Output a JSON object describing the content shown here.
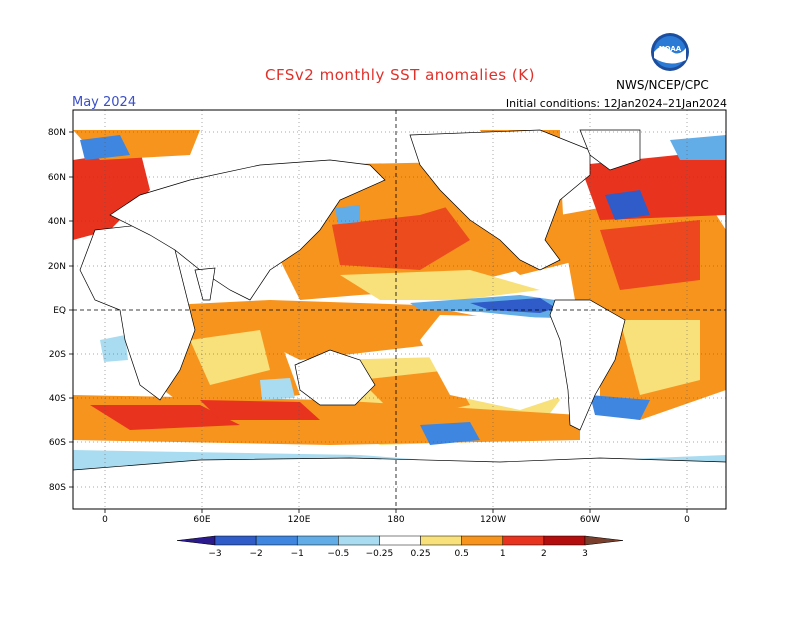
{
  "title": "CFSv2 monthly SST anomalies (K)",
  "month": "May 2024",
  "initial_conditions": "Initial conditions: 12Jan2024–21Jan2024",
  "agency": "NWS/NCEP/CPC",
  "logo_text": "NOAA",
  "lat_labels": [
    "80N",
    "60N",
    "40N",
    "20N",
    "EQ",
    "20S",
    "40S",
    "60S",
    "80S"
  ],
  "lon_labels": [
    "0",
    "60E",
    "120E",
    "180",
    "120W",
    "60W",
    "0"
  ],
  "colorbar": {
    "labels": [
      "−3",
      "−2",
      "−1",
      "−0.5",
      "−0.25",
      "0.25",
      "0.5",
      "1",
      "2",
      "3"
    ],
    "colors": [
      "#2a1a8e",
      "#2f5cc8",
      "#3f86e0",
      "#62ade8",
      "#a9dcf0",
      "#ffffff",
      "#f8e07a",
      "#f7941d",
      "#e8331f",
      "#b30d0d",
      "#7a3f2c"
    ]
  }
}
